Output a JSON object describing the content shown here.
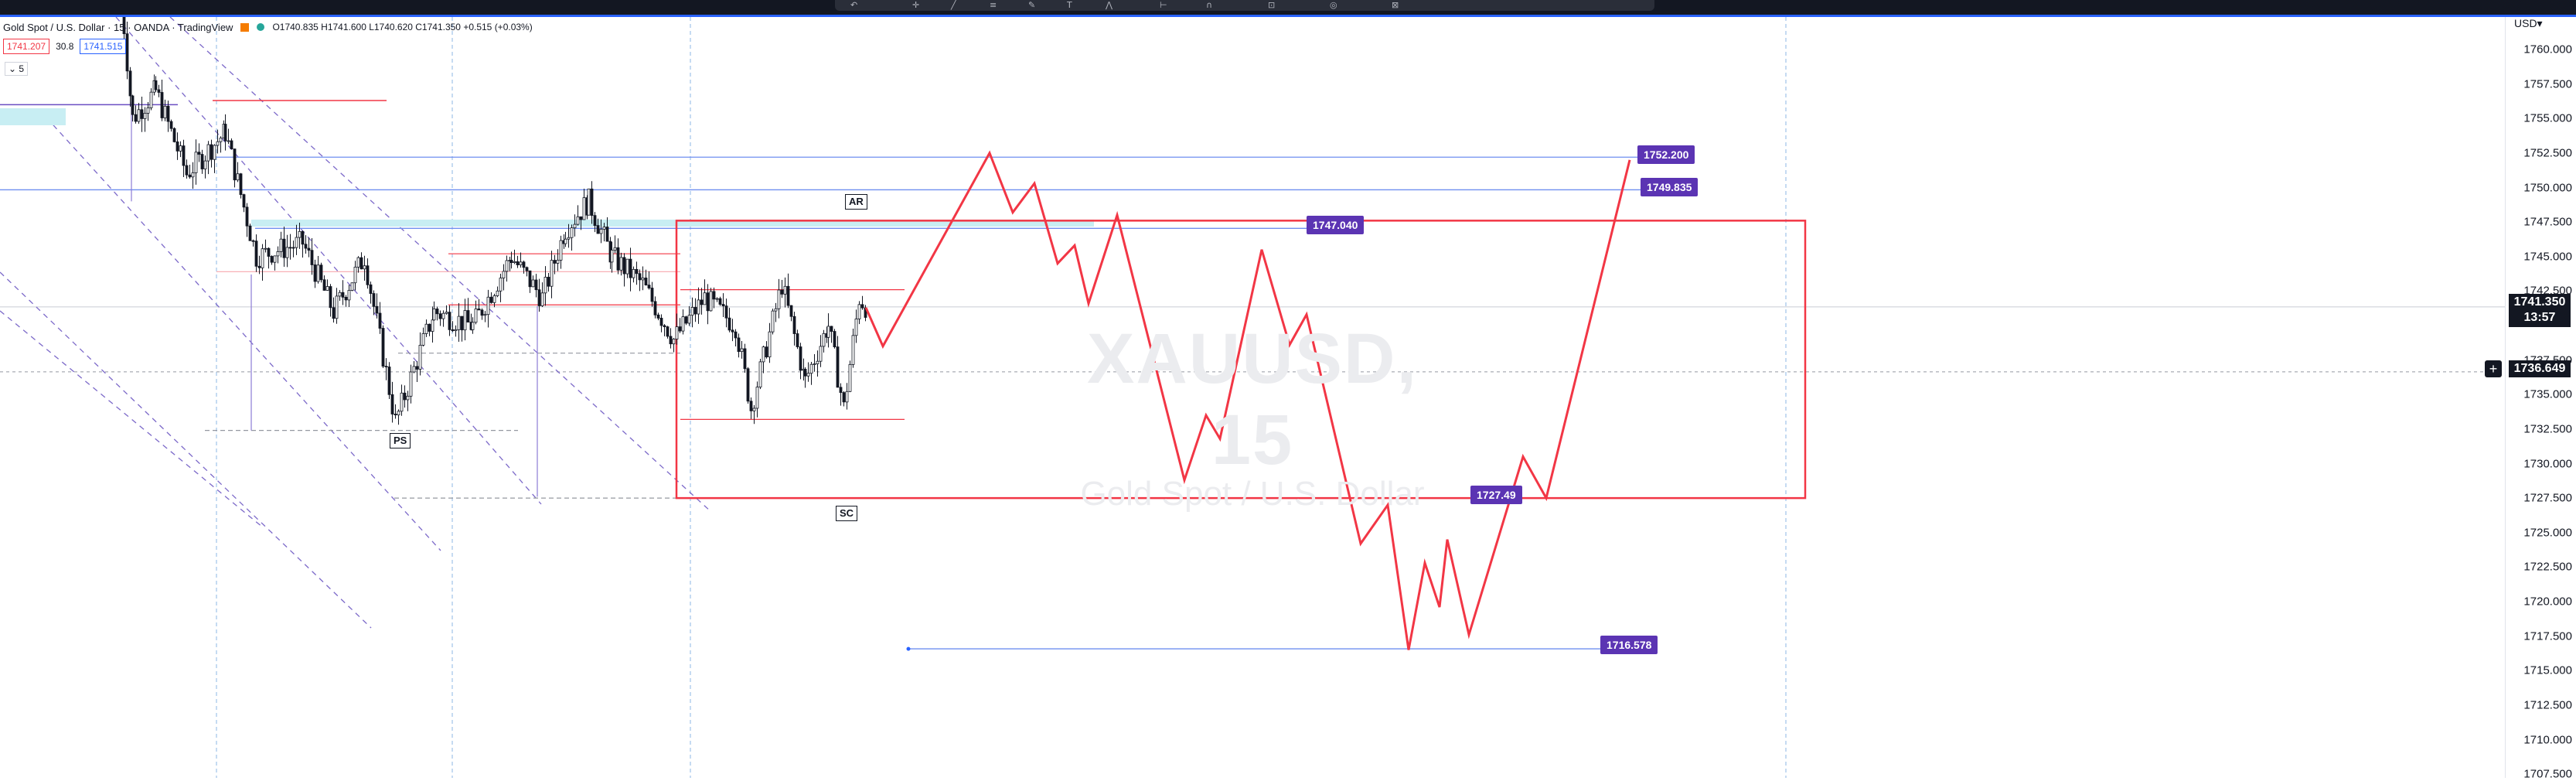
{
  "app": {
    "title": "Gold Spot / U.S. Dollar · 15 · OANDA · TradingView"
  },
  "legend": {
    "symbol_text": "Gold Spot / U.S. Dollar · 15 · OANDA · TradingView",
    "ohlc_text": "O1740.835  H1741.600  L1740.620  C1741.350  +0.515 (+0.03%)"
  },
  "trade": {
    "sell": "1741.207",
    "spread": "30.8",
    "buy": "1741.515"
  },
  "collapse": "⌄ 5",
  "watermark": {
    "symbol": "XAUUSD, 15",
    "description": "Gold Spot / U.S. Dollar"
  },
  "axis": {
    "currency": "USD▾",
    "ticks": [
      {
        "label": "1760.000",
        "y": 1760.0
      },
      {
        "label": "1757.500",
        "y": 1757.5
      },
      {
        "label": "1755.000",
        "y": 1755.0
      },
      {
        "label": "1752.500",
        "y": 1752.5
      },
      {
        "label": "1750.000",
        "y": 1750.0
      },
      {
        "label": "1747.500",
        "y": 1747.5
      },
      {
        "label": "1745.000",
        "y": 1745.0
      },
      {
        "label": "1742.500",
        "y": 1742.5
      },
      {
        "label": "1737.500",
        "y": 1737.5
      },
      {
        "label": "1735.000",
        "y": 1735.0
      },
      {
        "label": "1732.500",
        "y": 1732.5
      },
      {
        "label": "1730.000",
        "y": 1730.0
      },
      {
        "label": "1727.500",
        "y": 1727.5
      },
      {
        "label": "1725.000",
        "y": 1725.0
      },
      {
        "label": "1722.500",
        "y": 1722.5
      },
      {
        "label": "1720.000",
        "y": 1720.0
      },
      {
        "label": "1717.500",
        "y": 1717.5
      },
      {
        "label": "1715.000",
        "y": 1715.0
      },
      {
        "label": "1712.500",
        "y": 1712.5
      },
      {
        "label": "1710.000",
        "y": 1710.0
      },
      {
        "label": "1707.500",
        "y": 1707.5
      }
    ],
    "current_price": "1741.350",
    "countdown": "13:57",
    "crosshair_price": "1736.649"
  },
  "tags": {
    "t1752": "1752.200",
    "t1749": "1749.835",
    "t1747": "1747.040",
    "t1727": "1727.49",
    "t1716": "1716.578"
  },
  "wyckoff_labels": {
    "ar": "AR",
    "ps": "PS",
    "sc": "SC"
  },
  "colors": {
    "projection": "#f23645",
    "tag": "#5b34b3",
    "line": "#2962ff"
  },
  "icons": [
    "undo-icon",
    "cursor-icon",
    "trendline-icon",
    "fib-icon",
    "brush-icon",
    "text-icon",
    "pattern-icon",
    "ruler-icon",
    "magnet-icon",
    "lock-icon",
    "eye-icon",
    "trash-icon"
  ]
}
